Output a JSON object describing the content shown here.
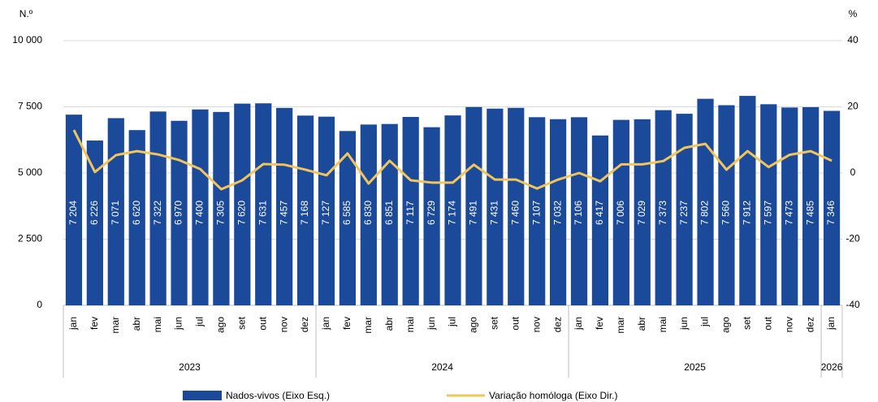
{
  "chart_data": {
    "type": "bar_line",
    "y_axis_title": "N.º",
    "y2_axis_title": "%",
    "groups": [
      {
        "label": "2023",
        "categories": [
          "jan",
          "fev",
          "mar",
          "abr",
          "mai",
          "jun",
          "jul",
          "ago",
          "set",
          "out",
          "nov",
          "dez"
        ]
      },
      {
        "label": "2024",
        "categories": [
          "jan",
          "fev",
          "mar",
          "abr",
          "mai",
          "jun",
          "jul",
          "ago",
          "set",
          "out",
          "nov",
          "dez"
        ]
      },
      {
        "label": "2025",
        "categories": [
          "jan",
          "fev",
          "mar",
          "abr",
          "mai",
          "jun",
          "jul",
          "ago",
          "set",
          "out",
          "nov",
          "dez"
        ]
      },
      {
        "label": "2026",
        "categories": [
          "jan"
        ]
      }
    ],
    "series": [
      {
        "name": "Nados-vivos (Eixo Esq.)",
        "type": "bar",
        "color": "#1c4a9a",
        "values": [
          7204,
          6226,
          7071,
          6620,
          7322,
          6970,
          7400,
          7305,
          7620,
          7631,
          7457,
          7168,
          7127,
          6585,
          6830,
          6851,
          7117,
          6729,
          7174,
          7491,
          7431,
          7460,
          7107,
          7032,
          7106,
          6417,
          7006,
          7029,
          7373,
          7237,
          7802,
          7560,
          7912,
          7597,
          7473,
          7485,
          7346
        ],
        "value_labels": [
          "7 204",
          "6 226",
          "7 071",
          "6 620",
          "7 322",
          "6 970",
          "7 400",
          "7 305",
          "7 620",
          "7 631",
          "7 457",
          "7 168",
          "7 127",
          "6 585",
          "6 830",
          "6 851",
          "7 117",
          "6 729",
          "7 174",
          "7 491",
          "7 431",
          "7 460",
          "7 107",
          "7 032",
          "7 106",
          "6 417",
          "7 006",
          "7 029",
          "7 373",
          "7 237",
          "7 802",
          "7 560",
          "7 912",
          "7 597",
          "7 473",
          "7 485",
          "7 346"
        ]
      },
      {
        "name": "Variação homóloga (Eixo Dir.)",
        "type": "line",
        "axis": "y2",
        "color": "#f2c55c",
        "values": [
          13,
          0.3,
          5.4,
          6.6,
          5.6,
          3.9,
          1.2,
          -4.9,
          -2.2,
          2.7,
          2.5,
          1.0,
          -0.7,
          5.9,
          -3.2,
          3.7,
          -2.2,
          -2.9,
          -2.9,
          2.5,
          -2.0,
          -2.0,
          -4.7,
          -2.0,
          0,
          -2.5,
          2.6,
          2.6,
          3.6,
          7.6,
          8.8,
          1.0,
          6.6,
          1.8,
          5.5,
          6.6,
          3.7
        ]
      }
    ],
    "ylim": [
      0,
      10000
    ],
    "yticks": [
      0,
      {
        "value": 2500,
        "label": "2 500"
      },
      {
        "value": 5000,
        "label": "5 000"
      },
      {
        "value": 7500,
        "label": "7 500"
      },
      {
        "value": 10000,
        "label": "10 000"
      }
    ],
    "y2lim": [
      -40,
      40
    ],
    "y2ticks": [
      -40,
      -20,
      0,
      20,
      40
    ],
    "grid": true
  }
}
